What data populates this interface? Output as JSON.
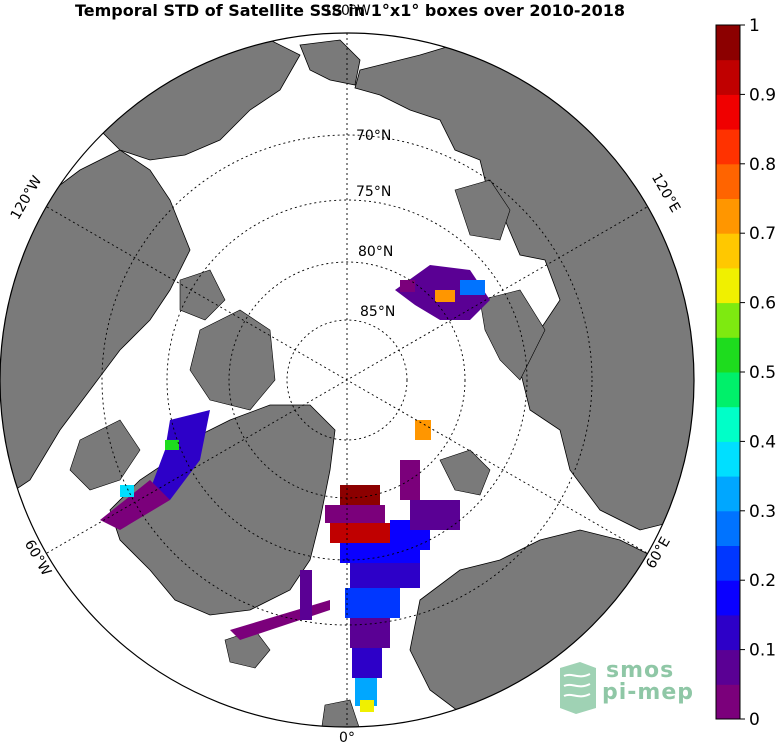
{
  "title": "Temporal STD of Satellite SSS in 1°x1° boxes over 2010-2018",
  "map": {
    "projection": "north polar stereographic",
    "lat_labels": [
      "70°N",
      "75°N",
      "80°N",
      "85°N"
    ],
    "lon_labels": {
      "top": "180°W",
      "bottom": "0°",
      "upper_left": "120°W",
      "lower_left": "60°W",
      "upper_right": "120°E",
      "lower_right": "60°E"
    },
    "colors": {
      "land": "#7a7a7a",
      "ocean": "#ffffff",
      "grid": "#000000"
    }
  },
  "colorbar": {
    "min": 0,
    "max": 1,
    "tick_labels": [
      "0",
      "0.1",
      "0.2",
      "0.3",
      "0.4",
      "0.5",
      "0.6",
      "0.7",
      "0.8",
      "0.9",
      "1"
    ],
    "colors": [
      "#7b007b",
      "#5a0094",
      "#2d00c8",
      "#0a00ff",
      "#0037ff",
      "#0073ff",
      "#00a7ff",
      "#00dfff",
      "#00ffc8",
      "#00f06a",
      "#1edc1e",
      "#7eea10",
      "#f0f000",
      "#ffc800",
      "#ff9600",
      "#ff6400",
      "#ff3200",
      "#f00000",
      "#c00000",
      "#8c0000"
    ]
  },
  "logo": {
    "line1": "smos",
    "line2": "pi-mep"
  }
}
